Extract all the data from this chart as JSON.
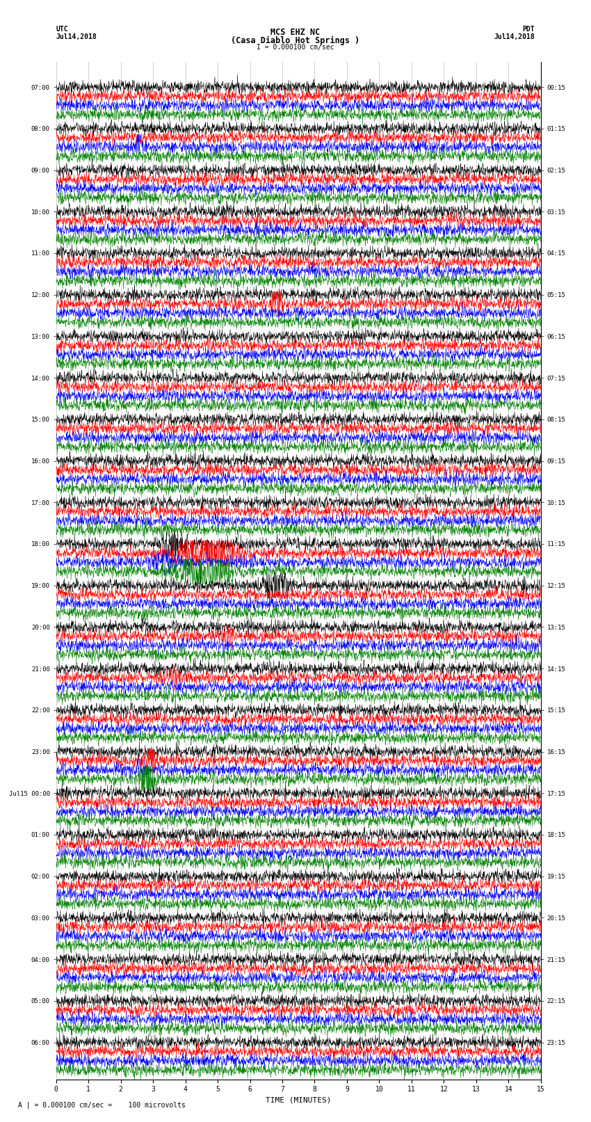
{
  "title_line1": "MCS EHZ NC",
  "title_line2": "(Casa Diablo Hot Springs )",
  "scale_label": "I = 0.000100 cm/sec",
  "left_header": "UTC",
  "left_date": "Jul14,2018",
  "right_header": "PDT",
  "right_date": "Jul14,2018",
  "bottom_label": "A | = 0.000100 cm/sec =    100 microvolts",
  "xlabel": "TIME (MINUTES)",
  "utc_times": [
    "07:00",
    "",
    "",
    "",
    "08:00",
    "",
    "",
    "",
    "09:00",
    "",
    "",
    "",
    "10:00",
    "",
    "",
    "",
    "11:00",
    "",
    "",
    "",
    "12:00",
    "",
    "",
    "",
    "13:00",
    "",
    "",
    "",
    "14:00",
    "",
    "",
    "",
    "15:00",
    "",
    "",
    "",
    "16:00",
    "",
    "",
    "",
    "17:00",
    "",
    "",
    "",
    "18:00",
    "",
    "",
    "",
    "19:00",
    "",
    "",
    "",
    "20:00",
    "",
    "",
    "",
    "21:00",
    "",
    "",
    "",
    "22:00",
    "",
    "",
    "",
    "23:00",
    "",
    "",
    "",
    "Jul15 00:00",
    "",
    "",
    "",
    "01:00",
    "",
    "",
    "",
    "02:00",
    "",
    "",
    "",
    "03:00",
    "",
    "",
    "",
    "04:00",
    "",
    "",
    "",
    "05:00",
    "",
    "",
    "",
    "06:00",
    "",
    "",
    ""
  ],
  "pdt_times": [
    "00:15",
    "",
    "",
    "",
    "01:15",
    "",
    "",
    "",
    "02:15",
    "",
    "",
    "",
    "03:15",
    "",
    "",
    "",
    "04:15",
    "",
    "",
    "",
    "05:15",
    "",
    "",
    "",
    "06:15",
    "",
    "",
    "",
    "07:15",
    "",
    "",
    "",
    "08:15",
    "",
    "",
    "",
    "09:15",
    "",
    "",
    "",
    "10:15",
    "",
    "",
    "",
    "11:15",
    "",
    "",
    "",
    "12:15",
    "",
    "",
    "",
    "13:15",
    "",
    "",
    "",
    "14:15",
    "",
    "",
    "",
    "15:15",
    "",
    "",
    "",
    "16:15",
    "",
    "",
    "",
    "17:15",
    "",
    "",
    "",
    "18:15",
    "",
    "",
    "",
    "19:15",
    "",
    "",
    "",
    "20:15",
    "",
    "",
    "",
    "21:15",
    "",
    "",
    "",
    "22:15",
    "",
    "",
    "",
    "23:15",
    "",
    "",
    ""
  ],
  "colors": [
    "black",
    "red",
    "blue",
    "green"
  ],
  "n_rows": 96,
  "minutes": 15,
  "x_ticks": [
    0,
    1,
    2,
    3,
    4,
    5,
    6,
    7,
    8,
    9,
    10,
    11,
    12,
    13,
    14,
    15
  ],
  "bg_color": "white",
  "trace_amp": 0.3,
  "noise_amp": 0.07,
  "grid_color": "#888888",
  "trace_lw": 0.4,
  "samples_per_row": 1800
}
